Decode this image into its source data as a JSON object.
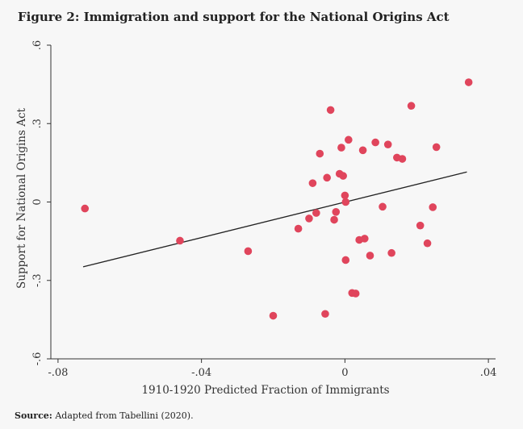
{
  "figure_title": "Figure 2: Immigration and support for the National Origins Act",
  "source": {
    "label": "Source:",
    "text": "Adapted from Tabellini (2020)."
  },
  "colors": {
    "points": "#e0455c",
    "fit_line": "#222222",
    "background": "#f7f7f7",
    "axis": "#333333"
  },
  "chart_data": {
    "type": "scatter",
    "title": "Figure 2: Immigration and support for the National Origins Act",
    "xlabel": "1910-1920 Predicted Fraction of Immigrants",
    "ylabel": "Support for National Origins Act",
    "xlim": [
      -0.082,
      0.042
    ],
    "ylim": [
      -0.6,
      0.6
    ],
    "xticks": [
      -0.08,
      -0.04,
      0,
      0.04
    ],
    "xtick_labels": [
      "-.08",
      "-.04",
      "0",
      ".04"
    ],
    "yticks": [
      -0.6,
      -0.3,
      0,
      0.3,
      0.6
    ],
    "ytick_labels": [
      "-.6",
      "-.3",
      "0",
      ".3",
      ".6"
    ],
    "grid": false,
    "fit_line": {
      "x": [
        -0.073,
        0.034
      ],
      "y": [
        -0.248,
        0.115
      ]
    },
    "points": [
      {
        "x": -0.0725,
        "y": -0.025
      },
      {
        "x": -0.046,
        "y": -0.148
      },
      {
        "x": -0.027,
        "y": -0.188
      },
      {
        "x": -0.02,
        "y": -0.435
      },
      {
        "x": -0.013,
        "y": -0.102
      },
      {
        "x": -0.01,
        "y": -0.063
      },
      {
        "x": -0.009,
        "y": 0.072
      },
      {
        "x": -0.008,
        "y": -0.042
      },
      {
        "x": -0.007,
        "y": 0.185
      },
      {
        "x": -0.0055,
        "y": -0.428
      },
      {
        "x": -0.005,
        "y": 0.093
      },
      {
        "x": -0.004,
        "y": 0.352
      },
      {
        "x": -0.003,
        "y": -0.068
      },
      {
        "x": -0.0025,
        "y": -0.038
      },
      {
        "x": -0.0015,
        "y": 0.108
      },
      {
        "x": -0.001,
        "y": 0.208
      },
      {
        "x": -0.0005,
        "y": 0.1
      },
      {
        "x": 0.0,
        "y": 0.025
      },
      {
        "x": 0.0002,
        "y": 0.0
      },
      {
        "x": 0.0002,
        "y": -0.222
      },
      {
        "x": 0.001,
        "y": 0.238
      },
      {
        "x": 0.002,
        "y": -0.348
      },
      {
        "x": 0.003,
        "y": -0.35
      },
      {
        "x": 0.004,
        "y": -0.145
      },
      {
        "x": 0.005,
        "y": 0.198
      },
      {
        "x": 0.0055,
        "y": -0.14
      },
      {
        "x": 0.007,
        "y": -0.205
      },
      {
        "x": 0.0085,
        "y": 0.228
      },
      {
        "x": 0.0105,
        "y": -0.018
      },
      {
        "x": 0.012,
        "y": 0.22
      },
      {
        "x": 0.013,
        "y": -0.195
      },
      {
        "x": 0.0145,
        "y": 0.17
      },
      {
        "x": 0.016,
        "y": 0.165
      },
      {
        "x": 0.0185,
        "y": 0.368
      },
      {
        "x": 0.021,
        "y": -0.09
      },
      {
        "x": 0.023,
        "y": -0.158
      },
      {
        "x": 0.0245,
        "y": -0.02
      },
      {
        "x": 0.0255,
        "y": 0.21
      },
      {
        "x": 0.0345,
        "y": 0.458
      }
    ]
  }
}
